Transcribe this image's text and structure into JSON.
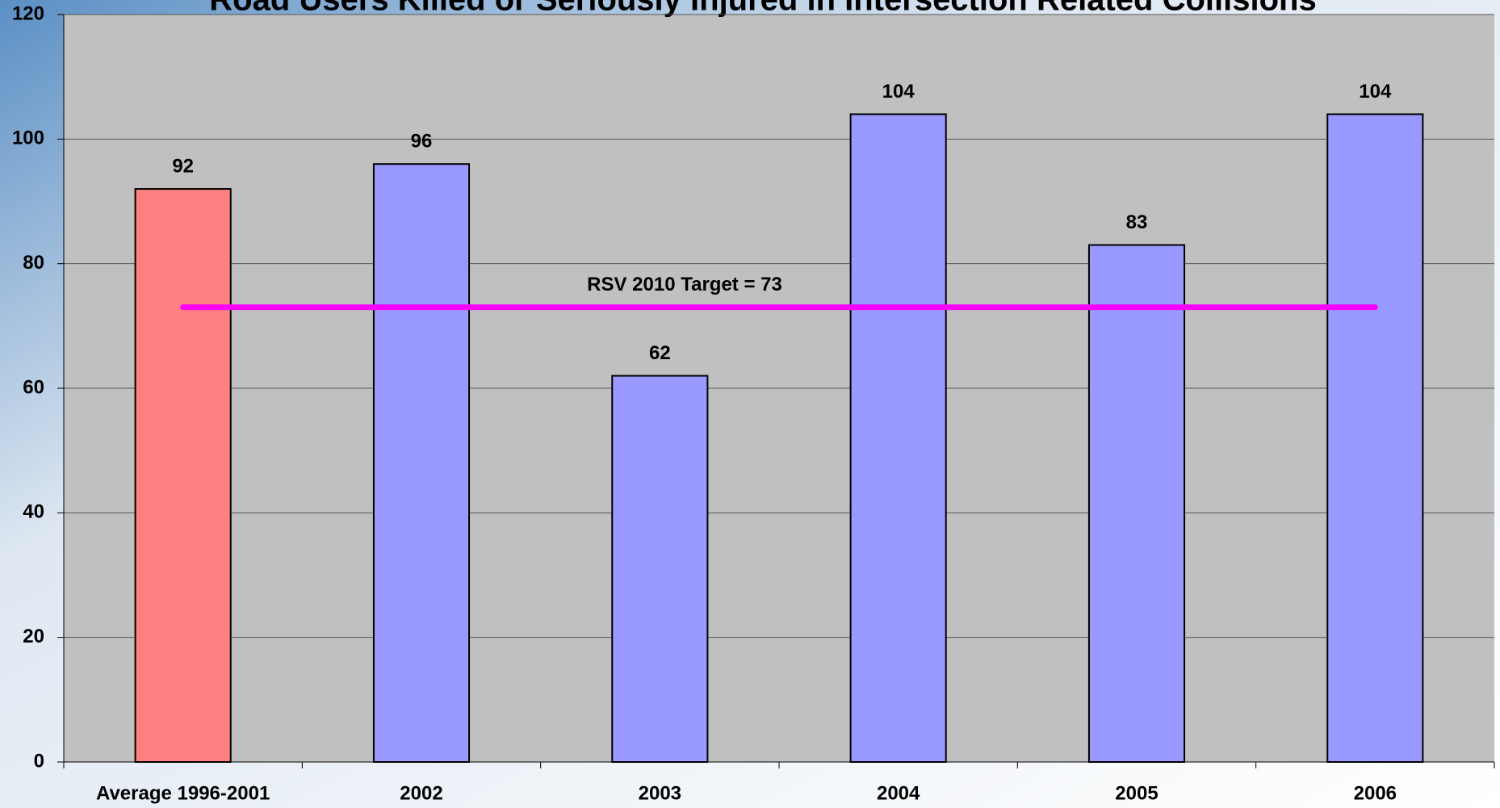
{
  "chart_data": {
    "type": "bar",
    "title": "Road Users Killed or Seriously Injured in Intersection Related Collisions",
    "categories": [
      "Average 1996-2001",
      "2002",
      "2003",
      "2004",
      "2005",
      "2006"
    ],
    "values": [
      92,
      96,
      62,
      104,
      83,
      104
    ],
    "colors": [
      "#ff8080",
      "#9999ff",
      "#9999ff",
      "#9999ff",
      "#9999ff",
      "#9999ff"
    ],
    "ylim": [
      0,
      120
    ],
    "yticks": [
      0,
      20,
      40,
      60,
      80,
      100,
      120
    ],
    "grid": true,
    "target": {
      "value": 73,
      "label": "RSV 2010 Target = 73",
      "color": "#ff00ff"
    }
  }
}
